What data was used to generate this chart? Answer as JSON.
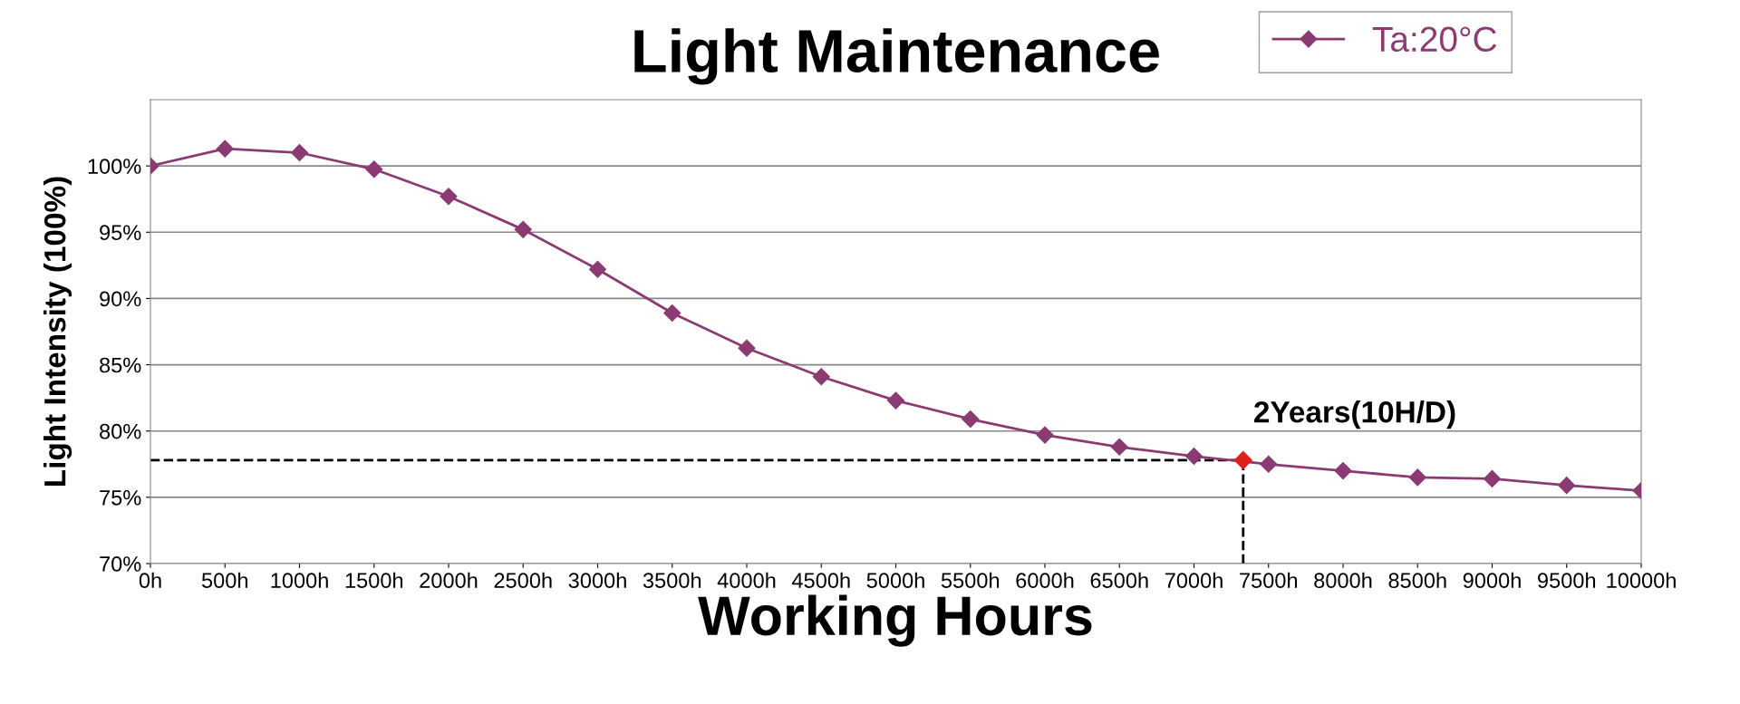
{
  "chart_data": {
    "type": "line",
    "title": "Light Maintenance",
    "xlabel": "Working Hours",
    "ylabel": "Light Intensity (100%)",
    "series": [
      {
        "name": "Ta:20°C",
        "color": "#8b3a72",
        "x": [
          0,
          500,
          1000,
          1500,
          2000,
          2500,
          3000,
          3500,
          4000,
          4500,
          5000,
          5500,
          6000,
          6500,
          7000,
          7500,
          8000,
          8500,
          9000,
          9500,
          10000
        ],
        "values": [
          100,
          101.3,
          101.0,
          99.75,
          97.7,
          95.2,
          92.2,
          88.9,
          86.25,
          84.1,
          82.3,
          80.9,
          79.7,
          78.8,
          78.1,
          77.5,
          77.0,
          76.5,
          76.4,
          75.9,
          75.5
        ]
      },
      {
        "type": "scatter",
        "color": "#e0201a",
        "x": [
          7330
        ],
        "values": [
          77.8
        ]
      }
    ],
    "xlim": [
      0,
      10000
    ],
    "xticks": [
      {
        "value": 0,
        "label": "0h"
      },
      {
        "value": 500,
        "label": "500h"
      },
      {
        "value": 1000,
        "label": "1000h"
      },
      {
        "value": 1500,
        "label": "1500h"
      },
      {
        "value": 2000,
        "label": "2000h"
      },
      {
        "value": 2500,
        "label": "2500h"
      },
      {
        "value": 3000,
        "label": "3000h"
      },
      {
        "value": 3500,
        "label": "3500h"
      },
      {
        "value": 4000,
        "label": "4000h"
      },
      {
        "value": 4500,
        "label": "4500h"
      },
      {
        "value": 5000,
        "label": "5000h"
      },
      {
        "value": 5500,
        "label": "5500h"
      },
      {
        "value": 6000,
        "label": "6000h"
      },
      {
        "value": 6500,
        "label": "6500h"
      },
      {
        "value": 7000,
        "label": "7000h"
      },
      {
        "value": 7500,
        "label": "7500h"
      },
      {
        "value": 8000,
        "label": "8000h"
      },
      {
        "value": 8500,
        "label": "8500h"
      },
      {
        "value": 9000,
        "label": "9000h"
      },
      {
        "value": 9500,
        "label": "9500h"
      },
      {
        "value": 10000,
        "label": "10000h"
      }
    ],
    "ylim": [
      70,
      105
    ],
    "yticks": [
      {
        "value": 70,
        "label": "70%"
      },
      {
        "value": 75,
        "label": "75%"
      },
      {
        "value": 80,
        "label": "80%"
      },
      {
        "value": 85,
        "label": "85%"
      },
      {
        "value": 90,
        "label": "90%"
      },
      {
        "value": 95,
        "label": "95%"
      },
      {
        "value": 100,
        "label": "100%"
      }
    ],
    "ref_lines": [
      {
        "axis": "x",
        "value": 7330,
        "color": "#000000",
        "line_style": "dashed"
      },
      {
        "axis": "y",
        "value": 77.8,
        "color": "#000000",
        "line_style": "dashed"
      }
    ],
    "annotations": [
      {
        "text": "2Years(10H/D)",
        "x": 7330,
        "y": 77.8
      }
    ],
    "grid": "y",
    "legend": "top right",
    "marker": "diamond",
    "line_style": "solid"
  }
}
